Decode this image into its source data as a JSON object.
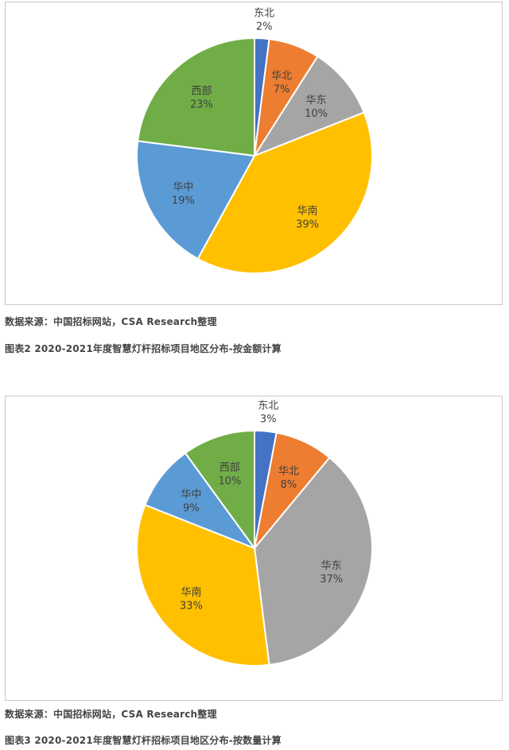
{
  "chart_data": [
    {
      "type": "pie",
      "categories": [
        "东北",
        "华北",
        "华东",
        "华南",
        "华中",
        "西部"
      ],
      "values": [
        2,
        7,
        10,
        39,
        19,
        23
      ],
      "labels": [
        "2%",
        "7%",
        "10%",
        "39%",
        "19%",
        "23%"
      ],
      "colors": [
        "#4472c4",
        "#ed7d31",
        "#a5a5a5",
        "#ffc000",
        "#5b9bd5",
        "#70ad47"
      ]
    },
    {
      "type": "pie",
      "categories": [
        "东北",
        "华北",
        "华东",
        "华南",
        "华中",
        "西部"
      ],
      "values": [
        3,
        8,
        37,
        33,
        9,
        10
      ],
      "labels": [
        "3%",
        "8%",
        "37%",
        "33%",
        "9%",
        "10%"
      ],
      "colors": [
        "#4472c4",
        "#ed7d31",
        "#a5a5a5",
        "#ffc000",
        "#5b9bd5",
        "#70ad47"
      ]
    }
  ],
  "captions": {
    "source1": "数据来源：中国招标网站，CSA Research整理",
    "figure2": "图表2 2020-2021年度智慧灯杆招标项目地区分布-按金额计算",
    "source2": "数据来源：中国招标网站，CSA Research整理",
    "figure3": "图表3 2020-2021年度智慧灯杆招标项目地区分布-按数量计算"
  }
}
